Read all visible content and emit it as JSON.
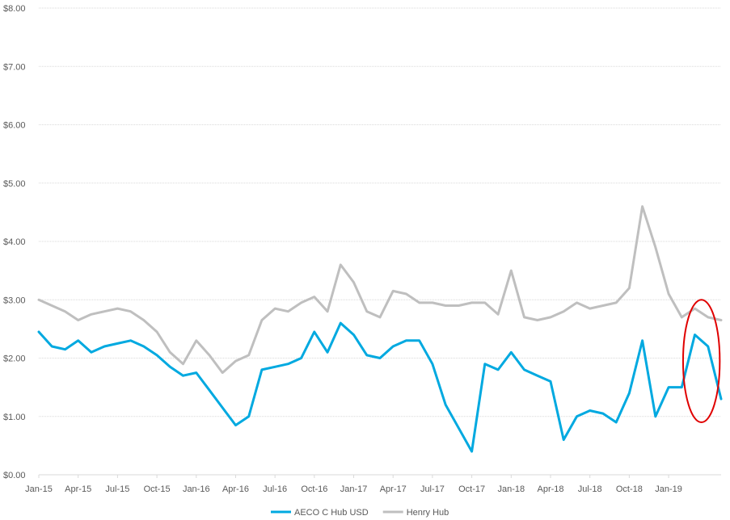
{
  "chart_data": {
    "type": "line",
    "title": "",
    "xlabel": "",
    "ylabel": "",
    "ylim": [
      0,
      8
    ],
    "x_range": [
      "2015-01",
      "2019-05"
    ],
    "grid": true,
    "legend_position": "bottom",
    "y_ticks": [
      "$0.00",
      "$1.00",
      "$2.00",
      "$3.00",
      "$4.00",
      "$5.00",
      "$6.00",
      "$7.00",
      "$8.00"
    ],
    "x_ticks": [
      "Jan-15",
      "Apr-15",
      "Jul-15",
      "Oct-15",
      "Jan-16",
      "Apr-16",
      "Jul-16",
      "Oct-16",
      "Jan-17",
      "Apr-17",
      "Jul-17",
      "Oct-17",
      "Jan-18",
      "Apr-18",
      "Jul-18",
      "Oct-18",
      "Jan-19"
    ],
    "series": [
      {
        "name": "AECO C Hub USD",
        "color": "#00a9e0",
        "x": [
          "2015-01",
          "2015-02",
          "2015-03",
          "2015-04",
          "2015-05",
          "2015-06",
          "2015-07",
          "2015-08",
          "2015-09",
          "2015-10",
          "2015-11",
          "2015-12",
          "2016-01",
          "2016-02",
          "2016-03",
          "2016-04",
          "2016-05",
          "2016-06",
          "2016-07",
          "2016-08",
          "2016-09",
          "2016-10",
          "2016-11",
          "2016-12",
          "2017-01",
          "2017-02",
          "2017-03",
          "2017-04",
          "2017-05",
          "2017-06",
          "2017-07",
          "2017-08",
          "2017-09",
          "2017-10",
          "2017-11",
          "2017-12",
          "2018-01",
          "2018-02",
          "2018-03",
          "2018-04",
          "2018-05",
          "2018-06",
          "2018-07",
          "2018-08",
          "2018-09",
          "2018-10",
          "2018-11",
          "2018-12",
          "2019-01",
          "2019-02",
          "2019-03",
          "2019-04",
          "2019-05"
        ],
        "values": [
          2.45,
          2.2,
          2.15,
          2.3,
          2.1,
          2.2,
          2.25,
          2.3,
          2.2,
          2.05,
          1.85,
          1.7,
          1.75,
          1.45,
          1.15,
          0.85,
          1.0,
          1.8,
          1.85,
          1.9,
          2.0,
          2.45,
          2.1,
          2.6,
          2.4,
          2.05,
          2.0,
          2.2,
          2.3,
          2.3,
          1.9,
          1.2,
          0.8,
          0.4,
          1.9,
          1.8,
          2.1,
          1.8,
          1.7,
          1.6,
          0.6,
          1.0,
          1.1,
          1.05,
          0.9,
          1.4,
          2.3,
          1.0,
          1.5,
          1.5,
          2.4,
          2.2,
          1.3
        ]
      },
      {
        "name": "Henry Hub",
        "color": "#bfbfbf",
        "x": [
          "2015-01",
          "2015-02",
          "2015-03",
          "2015-04",
          "2015-05",
          "2015-06",
          "2015-07",
          "2015-08",
          "2015-09",
          "2015-10",
          "2015-11",
          "2015-12",
          "2016-01",
          "2016-02",
          "2016-03",
          "2016-04",
          "2016-05",
          "2016-06",
          "2016-07",
          "2016-08",
          "2016-09",
          "2016-10",
          "2016-11",
          "2016-12",
          "2017-01",
          "2017-02",
          "2017-03",
          "2017-04",
          "2017-05",
          "2017-06",
          "2017-07",
          "2017-08",
          "2017-09",
          "2017-10",
          "2017-11",
          "2017-12",
          "2018-01",
          "2018-02",
          "2018-03",
          "2018-04",
          "2018-05",
          "2018-06",
          "2018-07",
          "2018-08",
          "2018-09",
          "2018-10",
          "2018-11",
          "2018-12",
          "2019-01",
          "2019-02",
          "2019-03",
          "2019-04",
          "2019-05"
        ],
        "values": [
          3.0,
          2.9,
          2.8,
          2.65,
          2.75,
          2.8,
          2.85,
          2.8,
          2.65,
          2.45,
          2.1,
          1.9,
          2.3,
          2.05,
          1.75,
          1.95,
          2.05,
          2.65,
          2.85,
          2.8,
          2.95,
          3.05,
          2.8,
          3.6,
          3.3,
          2.8,
          2.7,
          3.15,
          3.1,
          2.95,
          2.95,
          2.9,
          2.9,
          2.95,
          2.95,
          2.75,
          3.5,
          2.7,
          2.65,
          2.7,
          2.8,
          2.95,
          2.85,
          2.9,
          2.95,
          3.2,
          4.6,
          3.9,
          3.1,
          2.7,
          2.85,
          2.7,
          2.65
        ]
      }
    ],
    "annotation": {
      "type": "ellipse",
      "color": "#e00000"
    }
  }
}
